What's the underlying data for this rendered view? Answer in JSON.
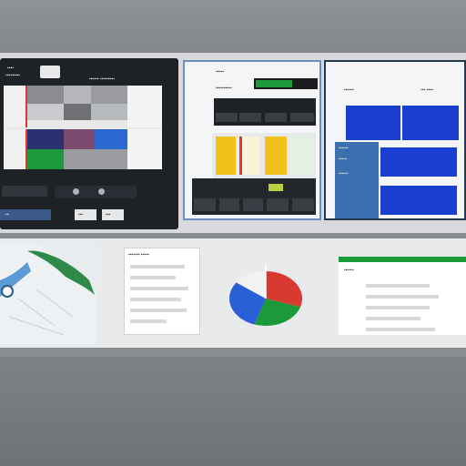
{
  "colors": {
    "wall": "#8a8d90",
    "panel_dark": "#1e2126",
    "accent_blue": "#1a3fd0",
    "accent_green": "#1c9a3a",
    "accent_red": "#d83a32",
    "accent_yellow": "#f2c21a"
  },
  "left_panel": {
    "title": "▪▪▪▪",
    "subtitle": "▪▪▪▪▪▪▪▪▪",
    "header": "▪▪▪▪▪▪ ▪▪▪▪▪▪▪▪▪",
    "buttons": [
      "▪▪",
      "▪▪▪",
      "▪▪▪"
    ]
  },
  "middle_panel": {
    "title": "▪▪▪▪▪",
    "subtitle": "▪▪▪▪▪▪▪▪▪▪",
    "badge": "▪▪▪▪"
  },
  "right_panel": {
    "header_left": "▪▪▪▪▪▪",
    "header_right": "▪▪▪ ▪▪▪▪",
    "side_labels": [
      "▪▪▪▪▪▪",
      "▪▪▪▪▪",
      "▪▪▪▪▪▪"
    ]
  },
  "list_panel": {
    "title": "▪▪▪▪▪▪▪ ▪▪▪▪▪"
  },
  "pie_chart": {
    "slices": [
      {
        "label": "red",
        "value": 30,
        "color": "#d83a32"
      },
      {
        "label": "green",
        "value": 25,
        "color": "#1c9a3a"
      },
      {
        "label": "blue",
        "value": 30,
        "color": "#2a5fd8"
      },
      {
        "label": "white",
        "value": 15,
        "color": "#f2f2f2"
      }
    ]
  },
  "form_panel": {
    "title": "▪▪▪▪▪▪"
  }
}
